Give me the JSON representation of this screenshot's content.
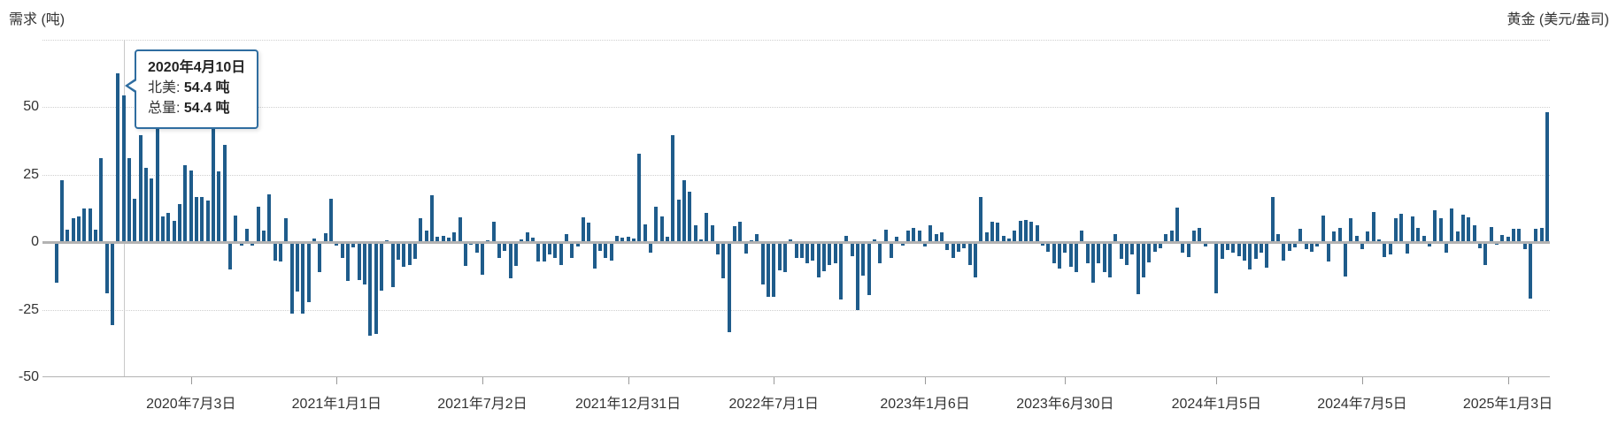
{
  "header": {
    "left_title": "需求 (吨)",
    "right_title": "黄金 (美元/盎司)"
  },
  "tooltip": {
    "date": "2020年4月10日",
    "rows": [
      {
        "label": "北美",
        "value": "54.4 吨"
      },
      {
        "label": "总量",
        "value": "54.4 吨"
      }
    ],
    "target_index": 14
  },
  "colors": {
    "bar": "#1f5c8b",
    "tooltip_border": "#2f6da0",
    "grid": "#cfcfcf",
    "zero_line": "#b3b3b3",
    "axis_line": "#b3b3b3",
    "hover_line": "#c9c9c9",
    "text": "#333333"
  },
  "chart_data": {
    "type": "bar",
    "title": "",
    "xlabel": "",
    "ylabel": "需求 (吨)",
    "secondary_ylabel": "黄金 (美元/盎司)",
    "unit": "吨",
    "ylim": [
      -50,
      75
    ],
    "grid": true,
    "legend_position": "none",
    "y_ticks": [
      {
        "value": 50,
        "label": "50"
      },
      {
        "value": 25,
        "label": "25"
      },
      {
        "value": 0,
        "label": "0"
      },
      {
        "value": -25,
        "label": "-25"
      },
      {
        "value": -50,
        "label": "-50"
      }
    ],
    "dotted_gridline_values": [
      75,
      50,
      25,
      -25
    ],
    "x_ticks": [
      {
        "label": "2020年7月3日",
        "index": 26
      },
      {
        "label": "2021年1月1日",
        "index": 52
      },
      {
        "label": "2021年7月2日",
        "index": 78
      },
      {
        "label": "2021年12月31日",
        "index": 104
      },
      {
        "label": "2022年7月1日",
        "index": 130
      },
      {
        "label": "2023年1月6日",
        "index": 157
      },
      {
        "label": "2023年6月30日",
        "index": 182
      },
      {
        "label": "2024年1月5日",
        "index": 209
      },
      {
        "label": "2024年7月5日",
        "index": 235
      },
      {
        "label": "2025年1月3日",
        "index": 261
      }
    ],
    "series": [
      {
        "name": "北美",
        "frequency": "weekly",
        "start_date": "2020-01-03",
        "values": [
          0.4,
          -0.3,
          -15,
          23,
          4.6,
          8.8,
          9.6,
          12.5,
          12.5,
          4.8,
          31,
          -18.8,
          -30.7,
          62.5,
          54.4,
          31,
          16,
          39.5,
          27.4,
          23.6,
          43,
          9.7,
          10.8,
          7.8,
          14.1,
          28.6,
          26.7,
          16.7,
          16.9,
          15.3,
          44,
          26.3,
          36.1,
          -10,
          10,
          -1.4,
          5,
          -1.4,
          13,
          4.4,
          17.6,
          -6.7,
          -7,
          9,
          -26.6,
          -18.4,
          -26.6,
          -22.2,
          1.5,
          -11,
          3.3,
          16,
          -1.3,
          -5.7,
          -14.5,
          -1.9,
          -14,
          -15.6,
          -34.5,
          -34,
          -17.8,
          0.7,
          -16.5,
          -6.6,
          -9,
          -8.5,
          -6.3,
          8.9,
          4.2,
          17.4,
          2,
          2.5,
          1.8,
          3.6,
          9.1,
          -8.8,
          -1,
          -4,
          -12,
          0.7,
          7.5,
          -5.7,
          -3.3,
          -13.2,
          -8.8,
          1,
          3.6,
          1.8,
          -7.1,
          -7.1,
          -4.6,
          -5.7,
          -8.5,
          2.9,
          -5.7,
          -1.5,
          9.3,
          7.3,
          -9.6,
          -3.3,
          -5.7,
          -6.8,
          2.3,
          1.8,
          2,
          1.5,
          32.7,
          6.6,
          -3.8,
          13,
          9.7,
          2,
          39.6,
          15.7,
          23.1,
          18.8,
          6.2,
          1.1,
          11,
          6.2,
          -4.4,
          -13.4,
          -33.4,
          5.8,
          7.5,
          -4.1,
          0.7,
          3.1,
          -15.6,
          -20.2,
          -20.2,
          -10.3,
          -11.2,
          1.1,
          -5.9,
          -5.9,
          -7.9,
          -6.8,
          -13,
          -10.6,
          -8.5,
          -7.9,
          -21.1,
          2.5,
          -5.2,
          -25,
          -12.3,
          -19.5,
          0.9,
          -7.9,
          4.5,
          -5.9,
          2,
          -1.3,
          4.4,
          5.3,
          4.2,
          -1.5,
          6.4,
          2.9,
          3.6,
          -3,
          -5.9,
          -3.5,
          -2.2,
          -8.5,
          -13,
          16.8,
          3.8,
          7.5,
          7.3,
          2.5,
          1.4,
          4.4,
          8,
          8.2,
          7.5,
          6.2,
          -1.3,
          -3.5,
          -7.7,
          -9.6,
          -4,
          -9,
          -11.2,
          4.2,
          -7.9,
          -15,
          -7.7,
          -11.2,
          -13,
          2.9,
          -6.3,
          -8.5,
          -4.6,
          -19.2,
          -13,
          -7.4,
          -3.5,
          -2.2,
          2.9,
          4.2,
          12.7,
          -4,
          -5.5,
          4.4,
          5.3,
          -1.6,
          0.3,
          -18.9,
          -6.3,
          -3,
          -4,
          -5.2,
          -6.8,
          -10.1,
          -6.3,
          -4,
          -9.3,
          16.8,
          3.1,
          -6.8,
          -3.3,
          -1.8,
          5,
          -2.6,
          -3.7,
          -1.5,
          10,
          -7.3,
          4.1,
          5.2,
          -12.7,
          9,
          2.5,
          -2.4,
          4.1,
          11.1,
          1.1,
          -5.6,
          -4.5,
          9,
          10.6,
          -4.3,
          9.5,
          5.2,
          2.5,
          -1.5,
          11.9,
          9,
          -4,
          12.6,
          4.1,
          10.1,
          9.3,
          6.3,
          -2.2,
          -8.3,
          5.7,
          -0.8,
          2.8,
          2,
          5,
          5,
          -2.4,
          -20.8,
          5,
          5.2,
          48.3
        ]
      }
    ]
  }
}
